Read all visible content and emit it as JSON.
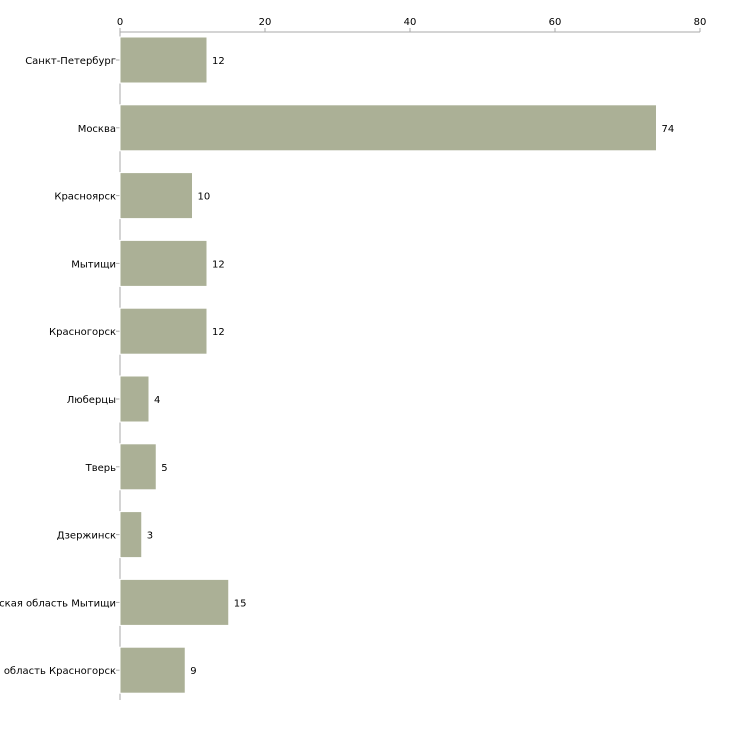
{
  "chart_data": {
    "type": "bar",
    "orientation": "horizontal",
    "title": "",
    "xlabel": "",
    "ylabel": "",
    "categories": [
      "Санкт-Петербург",
      "Москва",
      "Красноярск",
      "Мытищи",
      "Красногорск",
      "Люберцы",
      "Тверь",
      "Дзержинск",
      "Московская область Мытищи",
      "Московская область Красногорск"
    ],
    "values": [
      12,
      74,
      10,
      12,
      12,
      4,
      5,
      3,
      15,
      9
    ],
    "xlim": [
      0,
      80
    ],
    "ticks": [
      0,
      20,
      40,
      60,
      80
    ],
    "axis_position": "top",
    "grid": false,
    "bar_color": "#abb096",
    "bar_edge_color": "#ffffff",
    "axis_color": "#aaaaaa"
  }
}
